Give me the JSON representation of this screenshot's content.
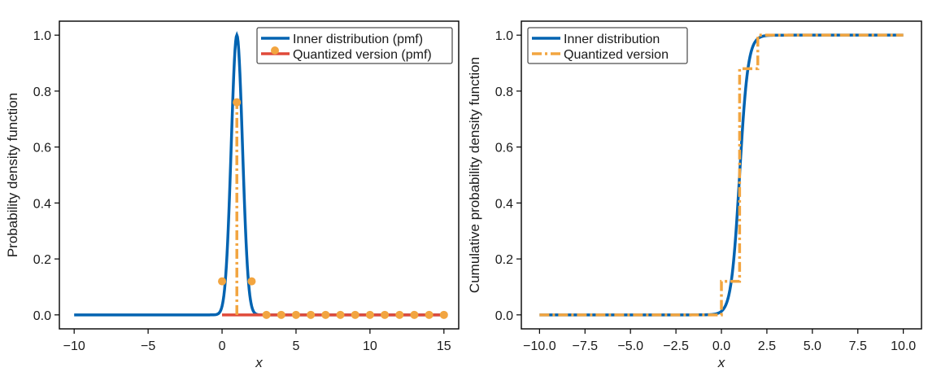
{
  "chart_data": [
    {
      "type": "line",
      "xlabel": "x",
      "ylabel": "Probability density function",
      "xlim": [
        -11,
        16
      ],
      "ylim": [
        -0.05,
        1.05
      ],
      "xticks": [
        -10,
        -5,
        0,
        5,
        10,
        15
      ],
      "xtick_labels": [
        "−10",
        "−5",
        "0",
        "5",
        "10",
        "15"
      ],
      "yticks": [
        0.0,
        0.2,
        0.4,
        0.6,
        0.8,
        1.0
      ],
      "ytick_labels": [
        "0.0",
        "0.2",
        "0.4",
        "0.6",
        "0.8",
        "1.0"
      ],
      "grid": false,
      "legend_position": "top-right",
      "colors": {
        "inner": "#0063b1",
        "quantized": "#f2a540",
        "baseline": "#e04a3a"
      },
      "series": [
        {
          "name": "Inner distribution (pmf)",
          "style": "solid",
          "x": [
            -10,
            -2,
            -1,
            -0.5,
            0,
            0.25,
            0.5,
            0.75,
            1,
            1.25,
            1.5,
            1.75,
            2,
            2.5,
            3,
            4,
            15
          ],
          "y": [
            0,
            0,
            0,
            0.0004,
            0.01,
            0.06,
            0.3,
            0.75,
            1.0,
            0.75,
            0.3,
            0.06,
            0.01,
            0.0004,
            0,
            0,
            0
          ]
        },
        {
          "name": "Quantized version (pmf)",
          "style": "stem",
          "x": [
            0,
            1,
            2,
            3,
            4,
            5,
            6,
            7,
            8,
            9,
            10,
            11,
            12,
            13,
            14,
            15
          ],
          "y": [
            0.12,
            0.76,
            0.12,
            0,
            0,
            0,
            0,
            0,
            0,
            0,
            0,
            0,
            0,
            0,
            0,
            0
          ]
        }
      ]
    },
    {
      "type": "line",
      "xlabel": "x",
      "ylabel": "Cumulative probability density function",
      "xlim": [
        -11,
        11
      ],
      "ylim": [
        -0.05,
        1.05
      ],
      "xticks": [
        -10,
        -7.5,
        -5,
        -2.5,
        0,
        2.5,
        5,
        7.5,
        10
      ],
      "xtick_labels": [
        "−10.0",
        "−7.5",
        "−5.0",
        "−2.5",
        "0.0",
        "2.5",
        "5.0",
        "7.5",
        "10.0"
      ],
      "yticks": [
        0.0,
        0.2,
        0.4,
        0.6,
        0.8,
        1.0
      ],
      "ytick_labels": [
        "0.0",
        "0.2",
        "0.4",
        "0.6",
        "0.8",
        "1.0"
      ],
      "grid": false,
      "legend_position": "top-left",
      "colors": {
        "inner": "#0063b1",
        "quantized": "#f2a540"
      },
      "series": [
        {
          "name": "Inner distribution",
          "style": "solid",
          "x": [
            -10,
            -1,
            -0.5,
            0,
            0.25,
            0.5,
            0.75,
            1,
            1.25,
            1.5,
            1.75,
            2,
            2.5,
            3,
            10
          ],
          "y": [
            0,
            0,
            0.001,
            0.01,
            0.05,
            0.16,
            0.34,
            0.5,
            0.66,
            0.84,
            0.95,
            0.99,
            0.999,
            1.0,
            1.0
          ]
        },
        {
          "name": "Quantized version",
          "style": "dashdot-step",
          "x": [
            -10,
            0,
            0,
            1,
            1,
            2,
            2,
            10
          ],
          "y": [
            0,
            0,
            0.12,
            0.12,
            0.88,
            0.88,
            1.0,
            1.0
          ]
        }
      ]
    }
  ]
}
